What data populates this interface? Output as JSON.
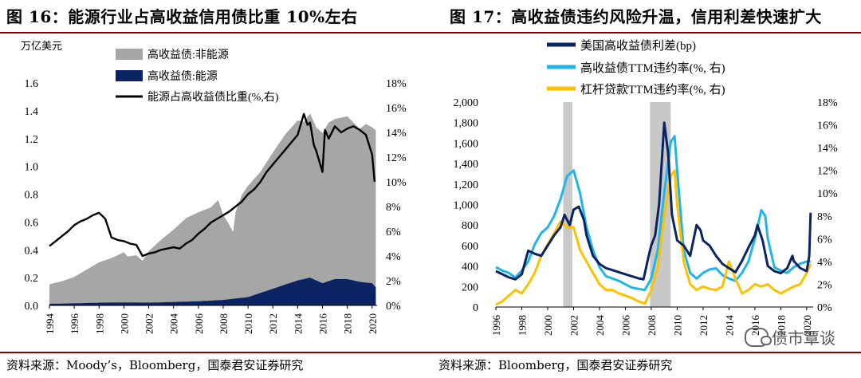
{
  "left": {
    "title": "图 16：能源行业占高收益信用债比重 10%左右",
    "source": "资料来源：Moody’s，Bloomberg，国泰君安证券研究"
  },
  "right": {
    "title": "图 17：高收益债违约风险升温，信用利差快速扩大",
    "source": "资料来源：Bloomberg，国泰君安证券研究",
    "watermark": "债市覃谈"
  },
  "colors": {
    "gray": "#a6a6a6",
    "navy": "#0a2463",
    "black": "#000000",
    "cyan": "#1fb5e9",
    "orange": "#ffc000",
    "recession": "#c8c8c8",
    "title_rule": "#8b0000"
  },
  "chart_data": [
    {
      "type": "area",
      "unit_label": "万亿美元",
      "ylim": [
        0,
        1.6
      ],
      "yticks": [
        "0.0",
        "0.2",
        "0.4",
        "0.6",
        "0.8",
        "1.0",
        "1.2",
        "1.4",
        "1.6"
      ],
      "y2lim": [
        0,
        18
      ],
      "y2ticks": [
        "0%",
        "2%",
        "4%",
        "6%",
        "8%",
        "10%",
        "12%",
        "14%",
        "16%",
        "18%"
      ],
      "xlim": [
        1994,
        2020.4
      ],
      "xticks": [
        "1994",
        "1996",
        "1998",
        "2000",
        "2002",
        "2004",
        "2006",
        "2008",
        "2010",
        "2012",
        "2014",
        "2016",
        "2018",
        "2020"
      ],
      "legend_position": "top-center",
      "series": [
        {
          "name": "高收益债:非能源",
          "kind": "stacked-area",
          "color": "#a6a6a6",
          "x": [
            1994,
            1995,
            1996,
            1997,
            1998,
            1999,
            1999.5,
            2000,
            2000.3,
            2001,
            2001.5,
            2002,
            2003,
            2004,
            2005,
            2006,
            2007,
            2007.6,
            2008,
            2008.4,
            2008.8,
            2009,
            2009.5,
            2010,
            2011,
            2012,
            2013,
            2014,
            2014.5,
            2015,
            2015.5,
            2016,
            2016.5,
            2017,
            2018,
            2019,
            2019.5,
            2020,
            2020.3
          ],
          "values": [
            0.14,
            0.16,
            0.19,
            0.24,
            0.29,
            0.32,
            0.34,
            0.36,
            0.33,
            0.34,
            0.3,
            0.37,
            0.45,
            0.52,
            0.6,
            0.64,
            0.67,
            0.72,
            0.61,
            0.55,
            0.48,
            0.62,
            0.74,
            0.8,
            0.87,
            0.98,
            1.08,
            1.15,
            1.13,
            1.18,
            1.1,
            1.08,
            1.14,
            1.15,
            1.17,
            1.1,
            1.14,
            1.12,
            1.13
          ]
        },
        {
          "name": "高收益债:能源",
          "kind": "stacked-area",
          "color": "#0a2463",
          "x": [
            1994,
            1996,
            1998,
            2000,
            2002,
            2004,
            2006,
            2008,
            2010,
            2012,
            2014,
            2015,
            2016,
            2017,
            2018,
            2019,
            2020,
            2020.3
          ],
          "values": [
            0.012,
            0.015,
            0.02,
            0.022,
            0.02,
            0.025,
            0.03,
            0.04,
            0.06,
            0.12,
            0.18,
            0.2,
            0.16,
            0.19,
            0.19,
            0.17,
            0.16,
            0.13
          ]
        },
        {
          "name": "能源占高收益债比重(%,右)",
          "kind": "line",
          "axis": "right",
          "color": "#000000",
          "x": [
            1994,
            1994.5,
            1995,
            1995.5,
            1996,
            1996.5,
            1997,
            1997.5,
            1998,
            1998.5,
            1999,
            1999.5,
            2000,
            2000.5,
            2001,
            2001.5,
            2002,
            2002.5,
            2003,
            2003.5,
            2004,
            2004.5,
            2005,
            2005.5,
            2006,
            2006.5,
            2007,
            2007.5,
            2008,
            2008.5,
            2009,
            2009.5,
            2010,
            2010.5,
            2011,
            2011.5,
            2012,
            2012.5,
            2013,
            2013.5,
            2014,
            2014.5,
            2014.8,
            2015,
            2015.3,
            2015.5,
            2016,
            2016.2,
            2016.5,
            2017,
            2017.5,
            2018,
            2018.5,
            2019,
            2019.5,
            2020,
            2020.2
          ],
          "values": [
            4.8,
            5.2,
            5.6,
            6.0,
            6.5,
            6.8,
            7.0,
            7.3,
            7.5,
            7.0,
            5.5,
            5.3,
            5.2,
            5.0,
            4.9,
            4.0,
            4.2,
            4.3,
            4.5,
            4.6,
            4.7,
            4.6,
            5.0,
            5.3,
            5.8,
            6.2,
            6.7,
            7.0,
            7.3,
            7.6,
            8.0,
            8.4,
            9.0,
            9.4,
            10.0,
            10.8,
            11.4,
            12.0,
            12.6,
            13.2,
            13.8,
            15.5,
            14.6,
            14.8,
            13.0,
            12.5,
            10.8,
            14.2,
            13.5,
            14.5,
            14.0,
            14.3,
            14.5,
            14.2,
            13.8,
            12.2,
            10.0
          ]
        }
      ]
    },
    {
      "type": "line",
      "ylim": [
        0,
        2000
      ],
      "yticks": [
        "0",
        "200",
        "400",
        "600",
        "800",
        "1,000",
        "1,200",
        "1,400",
        "1,600",
        "1,800",
        "2,000"
      ],
      "y2lim": [
        0,
        18
      ],
      "y2ticks": [
        "0%",
        "2%",
        "4%",
        "6%",
        "8%",
        "10%",
        "12%",
        "14%",
        "16%",
        "18%"
      ],
      "xlim": [
        1996,
        2020.5
      ],
      "xticks": [
        "1996",
        "1998",
        "2000",
        "2002",
        "2004",
        "2006",
        "2008",
        "2010",
        "2012",
        "2014",
        "2016",
        "2018",
        "2020"
      ],
      "legend_position": "top-left",
      "recession_shading": [
        [
          2001.2,
          2001.9
        ],
        [
          2007.9,
          2009.5
        ]
      ],
      "series": [
        {
          "name": "美国高收益债利差(bp)",
          "axis": "left",
          "color": "#0a2463",
          "x": [
            1996,
            1996.5,
            1997,
            1997.5,
            1998,
            1998.5,
            1999,
            1999.5,
            2000,
            2000.5,
            2001,
            2001.3,
            2001.7,
            2002,
            2002.4,
            2002.8,
            2003,
            2003.5,
            2004,
            2004.5,
            2005,
            2005.5,
            2006,
            2006.5,
            2007,
            2007.4,
            2007.8,
            2008,
            2008.3,
            2008.6,
            2008.9,
            2009,
            2009.3,
            2009.6,
            2010,
            2010.5,
            2011,
            2011.5,
            2011.8,
            2012,
            2012.5,
            2013,
            2013.5,
            2014,
            2014.5,
            2015,
            2015.5,
            2016,
            2016.2,
            2016.6,
            2017,
            2017.5,
            2018,
            2018.5,
            2018.9,
            2019,
            2019.5,
            2020,
            2020.2,
            2020.3
          ],
          "values": [
            350,
            320,
            290,
            270,
            320,
            550,
            520,
            500,
            600,
            700,
            780,
            900,
            800,
            950,
            980,
            850,
            700,
            500,
            420,
            380,
            360,
            340,
            320,
            300,
            280,
            270,
            500,
            600,
            700,
            1000,
            1600,
            1800,
            1500,
            900,
            650,
            600,
            500,
            800,
            750,
            650,
            600,
            500,
            420,
            380,
            340,
            450,
            580,
            700,
            800,
            650,
            400,
            350,
            330,
            380,
            500,
            450,
            380,
            350,
            500,
            920
          ]
        },
        {
          "name": "高收益债TTM违约率(%, 右)",
          "axis": "right",
          "color": "#1fb5e9",
          "x": [
            1996,
            1996.5,
            1997,
            1997.5,
            1998,
            1998.5,
            1999,
            1999.5,
            2000,
            2000.5,
            2001,
            2001.5,
            2002,
            2002.5,
            2003,
            2003.5,
            2004,
            2004.5,
            2005,
            2005.5,
            2006,
            2006.5,
            2007,
            2007.5,
            2008,
            2008.5,
            2009,
            2009.5,
            2009.8,
            2010,
            2010.5,
            2011,
            2011.5,
            2012,
            2012.5,
            2013,
            2013.5,
            2014,
            2014.5,
            2015,
            2015.5,
            2016,
            2016.5,
            2016.8,
            2017,
            2017.5,
            2018,
            2018.5,
            2019,
            2019.5,
            2020,
            2020.3
          ],
          "values": [
            3.5,
            3.2,
            3.0,
            2.6,
            3.2,
            4.0,
            5.5,
            6.5,
            7.0,
            8.0,
            9.5,
            11.5,
            12.0,
            10.0,
            7.0,
            5.0,
            3.5,
            2.7,
            2.5,
            2.3,
            2.0,
            1.7,
            1.6,
            1.5,
            2.5,
            5.0,
            10.0,
            14.5,
            15.0,
            12.0,
            5.0,
            3.0,
            2.5,
            3.0,
            3.3,
            3.4,
            2.8,
            2.5,
            2.3,
            3.0,
            4.0,
            6.0,
            8.5,
            8.0,
            6.0,
            3.5,
            3.2,
            3.0,
            3.5,
            3.8,
            4.0,
            4.0
          ]
        },
        {
          "name": "杠杆贷款TTM违约率(%, 右)",
          "axis": "right",
          "color": "#ffc000",
          "x": [
            1996,
            1996.5,
            1997,
            1997.5,
            1998,
            1998.5,
            1999,
            1999.5,
            2000,
            2000.5,
            2001,
            2001.5,
            2002,
            2002.5,
            2003,
            2003.5,
            2004,
            2004.5,
            2005,
            2005.5,
            2006,
            2006.5,
            2007,
            2007.5,
            2008,
            2008.5,
            2009,
            2009.5,
            2009.8,
            2010,
            2010.5,
            2011,
            2011.5,
            2012,
            2012.5,
            2013,
            2013.5,
            2014,
            2014.5,
            2015,
            2015.5,
            2016,
            2016.5,
            2017,
            2017.5,
            2018,
            2018.5,
            2019,
            2019.5,
            2020,
            2020.3
          ],
          "values": [
            0.2,
            0.5,
            1.0,
            1.5,
            1.2,
            2.0,
            3.0,
            4.5,
            5.5,
            6.5,
            7.5,
            7.0,
            7.0,
            5.0,
            4.0,
            3.0,
            2.0,
            1.5,
            1.5,
            1.2,
            1.0,
            0.8,
            0.5,
            0.3,
            1.5,
            3.5,
            8.0,
            11.5,
            12.0,
            9.0,
            4.0,
            2.0,
            1.5,
            1.8,
            1.6,
            1.5,
            1.8,
            4.0,
            2.5,
            1.2,
            1.5,
            2.0,
            1.8,
            2.0,
            1.5,
            1.2,
            1.5,
            1.8,
            2.0,
            3.0,
            3.8
          ]
        }
      ]
    }
  ]
}
